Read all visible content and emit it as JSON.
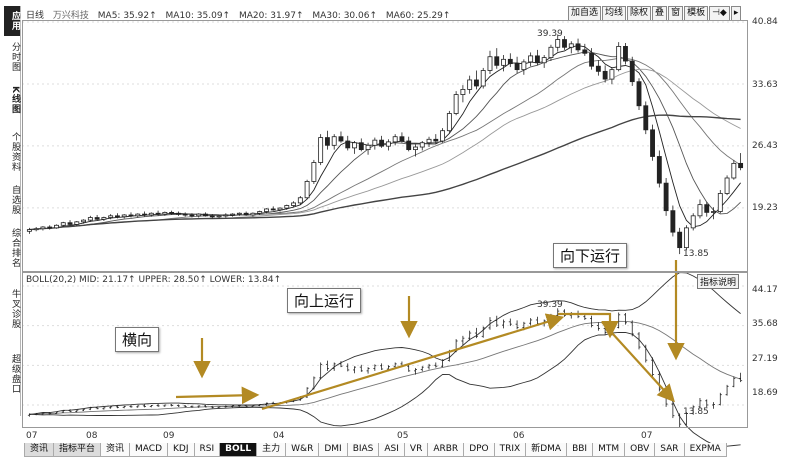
{
  "sidebar": [
    "应用",
    "分时图",
    "K线图",
    "个股资料",
    "自选股",
    "综合排名",
    "牛叉诊股",
    "超级盘口"
  ],
  "sidebar_active_index": 0,
  "sidebar_bold_index": 2,
  "top_legend": {
    "period": "日线",
    "stock": "万兴科技",
    "items": [
      "MA5: 35.92↑",
      "MA10: 35.09↑",
      "MA20: 31.97↑",
      "MA30: 30.06↑",
      "MA60: 25.29↑"
    ]
  },
  "toolbar": [
    "加自选",
    "均线",
    "除权",
    "叠",
    "窗",
    "模板",
    "⊣◆",
    "▸"
  ],
  "main_axis": [
    "40.84",
    "33.63",
    "26.43",
    "19.23"
  ],
  "main_annotations": {
    "high": "39.39",
    "low": "13.85"
  },
  "boll_legend": "BOLL(20,2) MID: 21.17↑  UPPER: 28.50↑  LOWER: 13.84↑",
  "boll_axis": [
    "44.17",
    "35.68",
    "27.19",
    "18.69"
  ],
  "boll_annotations": {
    "high": "39.39",
    "low": "13.85"
  },
  "note_button": "指标说明",
  "months": [
    "07",
    "08",
    "09",
    "04",
    "05",
    "06",
    "07"
  ],
  "tabs": [
    "资讯",
    "指标平台",
    "资讯",
    "MACD",
    "KDJ",
    "RSI",
    "BOLL",
    "主力",
    "W&R",
    "DMI",
    "BIAS",
    "ASI",
    "VR",
    "ARBR",
    "DPO",
    "TRIX",
    "新DMA",
    "BBI",
    "MTM",
    "OBV",
    "SAR",
    "EXPMA"
  ],
  "active_tab": "BOLL",
  "callouts": {
    "sideways": "横向",
    "up": "向上运行",
    "down": "向下运行"
  },
  "colors": {
    "accent_arrow": "#b38a23",
    "up_candle": "#ffffff",
    "down_candle": "#222222",
    "line": "#333333"
  },
  "chart_data": {
    "type": "candlestick",
    "note": "Daily K-line with MA lines (top) and BOLL indicator (bottom); values estimated from axes.",
    "price_axis": {
      "min": 12.0,
      "max": 40.84
    },
    "boll_axis": {
      "min": 14.2,
      "max": 44.17
    },
    "candles": [
      [
        16.5,
        16.9,
        16.2,
        16.7
      ],
      [
        16.7,
        17.0,
        16.5,
        16.8
      ],
      [
        16.8,
        17.1,
        16.6,
        17.0
      ],
      [
        17.0,
        17.2,
        16.7,
        16.9
      ],
      [
        16.9,
        17.3,
        16.8,
        17.2
      ],
      [
        17.2,
        17.6,
        17.0,
        17.5
      ],
      [
        17.5,
        17.8,
        17.2,
        17.3
      ],
      [
        17.3,
        17.7,
        17.1,
        17.6
      ],
      [
        17.6,
        17.9,
        17.4,
        17.8
      ],
      [
        17.8,
        18.3,
        17.6,
        18.1
      ],
      [
        18.1,
        18.4,
        17.8,
        17.9
      ],
      [
        17.9,
        18.2,
        17.7,
        18.1
      ],
      [
        18.1,
        18.5,
        17.9,
        18.3
      ],
      [
        18.3,
        18.6,
        18.0,
        18.2
      ],
      [
        18.2,
        18.5,
        18.0,
        18.4
      ],
      [
        18.4,
        18.7,
        18.1,
        18.3
      ],
      [
        18.3,
        18.6,
        18.1,
        18.5
      ],
      [
        18.5,
        18.8,
        18.2,
        18.4
      ],
      [
        18.4,
        18.7,
        18.2,
        18.6
      ],
      [
        18.6,
        18.9,
        18.3,
        18.5
      ],
      [
        18.5,
        18.8,
        18.3,
        18.7
      ],
      [
        18.7,
        18.9,
        18.4,
        18.6
      ],
      [
        18.6,
        18.8,
        18.3,
        18.5
      ],
      [
        18.5,
        18.7,
        18.2,
        18.4
      ],
      [
        18.4,
        18.6,
        18.1,
        18.3
      ],
      [
        18.3,
        18.6,
        18.1,
        18.5
      ],
      [
        18.5,
        18.7,
        18.2,
        18.3
      ],
      [
        18.3,
        18.5,
        18.0,
        18.2
      ],
      [
        18.2,
        18.4,
        18.0,
        18.3
      ],
      [
        18.3,
        18.6,
        18.1,
        18.4
      ],
      [
        18.4,
        18.6,
        18.2,
        18.5
      ],
      [
        18.5,
        18.7,
        18.3,
        18.6
      ],
      [
        18.6,
        18.8,
        18.3,
        18.4
      ],
      [
        18.4,
        18.7,
        18.2,
        18.6
      ],
      [
        18.6,
        18.9,
        18.4,
        18.8
      ],
      [
        18.8,
        19.2,
        18.6,
        19.1
      ],
      [
        19.1,
        19.4,
        18.9,
        19.0
      ],
      [
        19.0,
        19.3,
        18.8,
        19.2
      ],
      [
        19.2,
        19.6,
        19.0,
        19.5
      ],
      [
        19.5,
        20.0,
        19.3,
        19.8
      ],
      [
        19.8,
        20.6,
        19.6,
        20.4
      ],
      [
        20.4,
        22.5,
        20.2,
        22.3
      ],
      [
        22.3,
        24.8,
        22.0,
        24.5
      ],
      [
        24.5,
        27.8,
        24.2,
        27.4
      ],
      [
        27.4,
        28.2,
        26.0,
        26.5
      ],
      [
        26.5,
        27.8,
        26.0,
        27.5
      ],
      [
        27.5,
        28.1,
        26.8,
        27.0
      ],
      [
        27.0,
        27.6,
        25.9,
        26.2
      ],
      [
        26.2,
        27.0,
        25.5,
        26.8
      ],
      [
        26.8,
        27.3,
        25.8,
        26.0
      ],
      [
        26.0,
        26.8,
        25.4,
        26.5
      ],
      [
        26.5,
        27.4,
        26.0,
        27.1
      ],
      [
        27.1,
        27.6,
        26.2,
        26.4
      ],
      [
        26.4,
        27.2,
        25.9,
        26.9
      ],
      [
        26.9,
        27.8,
        26.5,
        27.5
      ],
      [
        27.5,
        28.0,
        26.8,
        27.0
      ],
      [
        27.0,
        27.5,
        25.8,
        26.0
      ],
      [
        26.0,
        26.6,
        25.2,
        26.3
      ],
      [
        26.3,
        27.0,
        25.9,
        26.8
      ],
      [
        26.8,
        27.5,
        26.3,
        27.2
      ],
      [
        27.2,
        27.8,
        26.7,
        27.0
      ],
      [
        27.0,
        28.5,
        26.8,
        28.2
      ],
      [
        28.2,
        30.5,
        28.0,
        30.2
      ],
      [
        30.2,
        32.8,
        30.0,
        32.4
      ],
      [
        32.4,
        33.5,
        31.5,
        33.0
      ],
      [
        33.0,
        34.6,
        32.5,
        34.1
      ],
      [
        34.1,
        35.2,
        33.0,
        33.4
      ],
      [
        33.4,
        35.5,
        33.1,
        35.2
      ],
      [
        35.2,
        37.5,
        34.8,
        36.8
      ],
      [
        36.8,
        37.8,
        35.4,
        35.8
      ],
      [
        35.8,
        37.0,
        35.1,
        36.5
      ],
      [
        36.5,
        37.2,
        35.6,
        36.0
      ],
      [
        36.0,
        36.8,
        34.9,
        35.3
      ],
      [
        35.3,
        36.5,
        34.7,
        36.2
      ],
      [
        36.2,
        37.3,
        35.7,
        36.9
      ],
      [
        36.9,
        37.6,
        35.8,
        36.1
      ],
      [
        36.1,
        37.0,
        35.5,
        36.7
      ],
      [
        36.7,
        38.2,
        36.3,
        37.9
      ],
      [
        37.9,
        39.39,
        37.4,
        38.8
      ],
      [
        38.8,
        39.2,
        37.6,
        37.9
      ],
      [
        37.9,
        38.6,
        37.2,
        38.3
      ],
      [
        38.3,
        38.9,
        37.3,
        37.6
      ],
      [
        37.6,
        38.3,
        36.9,
        37.2
      ],
      [
        37.2,
        37.8,
        35.3,
        35.7
      ],
      [
        35.7,
        36.4,
        34.6,
        35.1
      ],
      [
        35.1,
        35.8,
        33.8,
        34.2
      ],
      [
        34.2,
        35.6,
        33.6,
        35.3
      ],
      [
        35.3,
        38.5,
        35.1,
        38.0
      ],
      [
        38.0,
        38.4,
        35.9,
        36.3
      ],
      [
        36.3,
        36.8,
        33.4,
        33.9
      ],
      [
        33.9,
        34.3,
        30.6,
        31.1
      ],
      [
        31.1,
        31.6,
        27.8,
        28.3
      ],
      [
        28.3,
        28.9,
        24.7,
        25.2
      ],
      [
        25.2,
        25.9,
        21.6,
        22.1
      ],
      [
        22.1,
        22.7,
        18.3,
        18.9
      ],
      [
        18.9,
        19.5,
        15.9,
        16.4
      ],
      [
        16.4,
        16.9,
        13.85,
        14.6
      ],
      [
        14.6,
        17.2,
        14.3,
        16.9
      ],
      [
        16.9,
        18.6,
        16.6,
        18.3
      ],
      [
        18.3,
        20.2,
        18.0,
        19.6
      ],
      [
        19.6,
        19.9,
        18.2,
        18.7
      ],
      [
        18.7,
        19.3,
        17.9,
        18.8
      ],
      [
        18.8,
        21.3,
        18.6,
        20.9
      ],
      [
        20.9,
        23.0,
        20.7,
        22.7
      ],
      [
        22.7,
        24.8,
        22.5,
        24.4
      ],
      [
        24.4,
        25.6,
        23.6,
        23.9
      ]
    ],
    "ma": [
      {
        "name": "MA5",
        "color": "#222222"
      },
      {
        "name": "MA10",
        "color": "#555555"
      },
      {
        "name": "MA20",
        "color": "#777777"
      },
      {
        "name": "MA30",
        "color": "#999999"
      },
      {
        "name": "MA60",
        "color": "#444444"
      }
    ],
    "boll": {
      "period": 20,
      "k": 2
    }
  }
}
